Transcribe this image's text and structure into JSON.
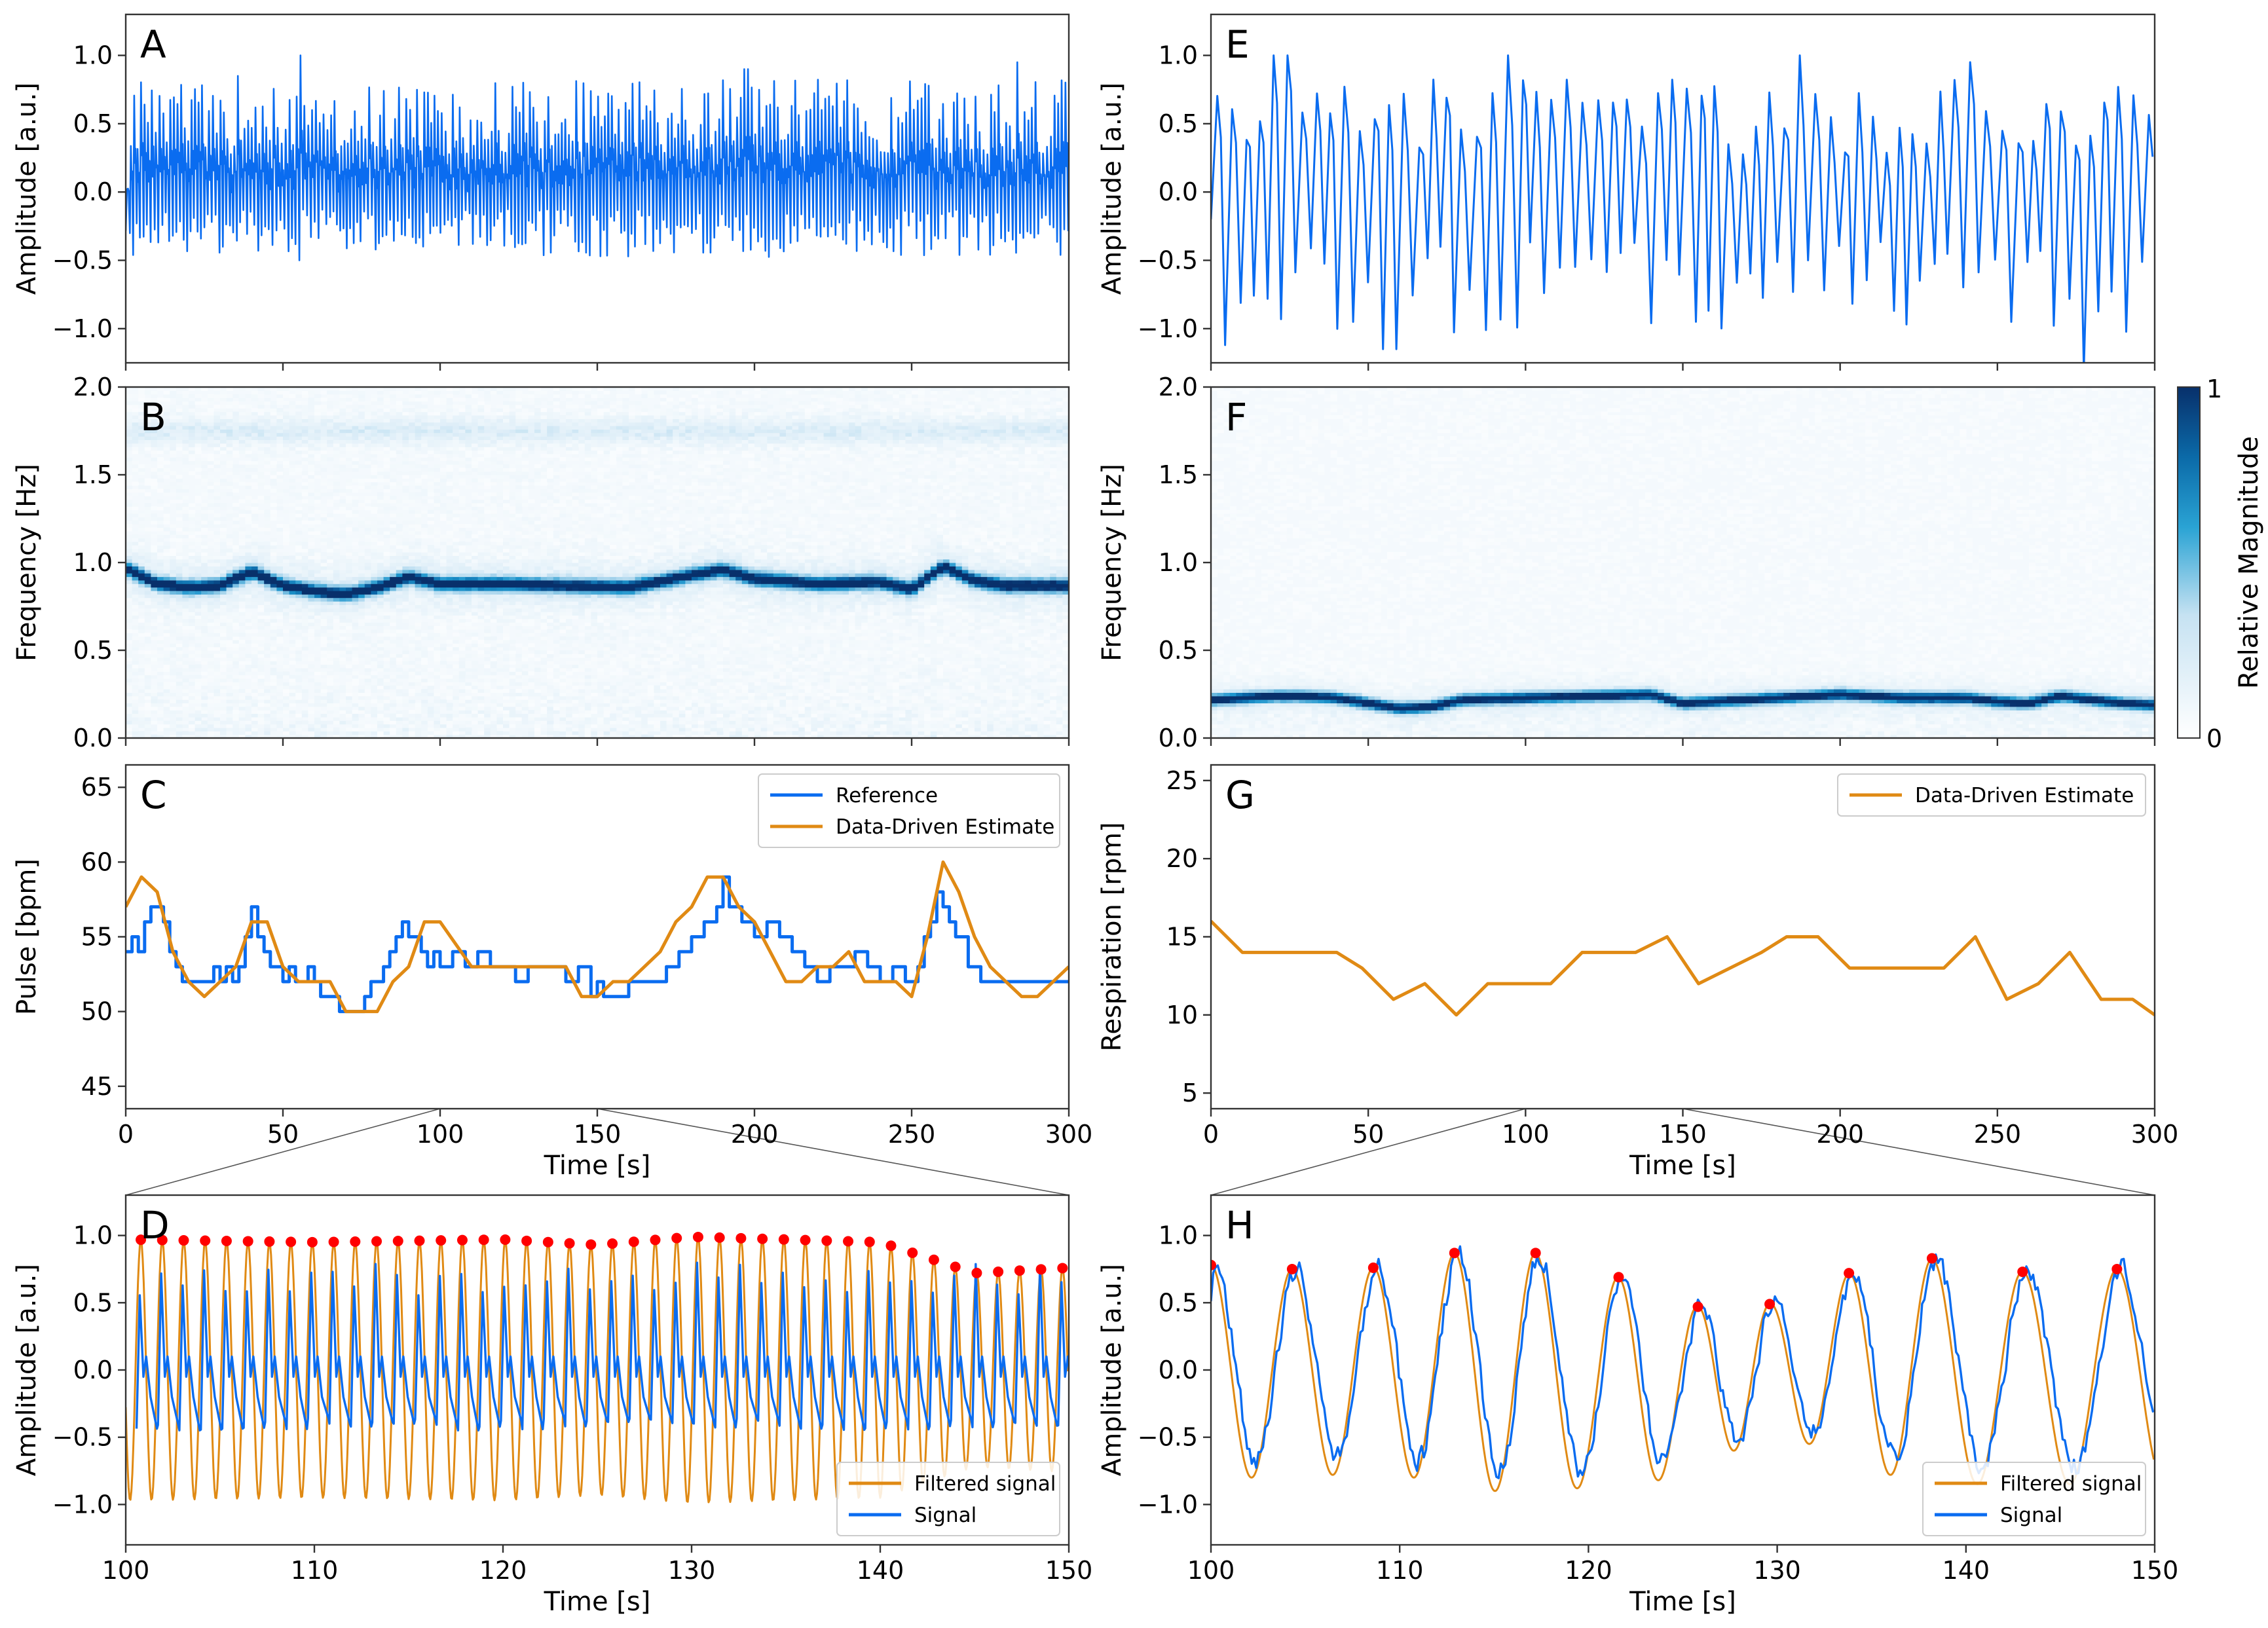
{
  "colors": {
    "signal_blue": "#0a6cf0",
    "estimate_orange": "#e08a14",
    "peak_red": "#ff0000",
    "heat_low": "#ffffff",
    "heat_high": "#08306b"
  },
  "chart_data": [
    {
      "id": "A",
      "type": "line",
      "panel_label": "A",
      "title": "",
      "xlabel": "",
      "ylabel": "Amplitude [a.u.]",
      "xlim": [
        0,
        300
      ],
      "ylim": [
        -1.25,
        1.3
      ],
      "yticks": [
        -1.0,
        -0.5,
        0.0,
        0.5,
        1.0
      ],
      "ytick_labels": [
        "−1.0",
        "−0.5",
        "0.0",
        "0.5",
        "1.0"
      ],
      "xticks": [
        0,
        50,
        100,
        150,
        200,
        250,
        300
      ],
      "xtick_labels_shown": false,
      "series": [
        {
          "name": "Signal",
          "color": "#0a6cf0",
          "kind": "oscillation",
          "approx_frequency_hz": 0.87,
          "approx_envelope": [
            -0.5,
            0.9
          ],
          "anchor_points": [
            [
              0,
              0.02
            ],
            [
              35,
              0.85
            ],
            [
              55,
              1.0
            ],
            [
              55.5,
              -0.5
            ],
            [
              197,
              0.9
            ],
            [
              283,
              0.95
            ],
            [
              300,
              0.8
            ]
          ]
        }
      ]
    },
    {
      "id": "B",
      "type": "heatmap",
      "panel_label": "B",
      "xlabel": "",
      "ylabel": "Frequency [Hz]",
      "xlim": [
        0,
        300
      ],
      "ylim": [
        0,
        2.0
      ],
      "yticks": [
        0.0,
        0.5,
        1.0,
        1.5,
        2.0
      ],
      "ytick_labels": [
        "0.0",
        "0.5",
        "1.0",
        "1.5",
        "2.0"
      ],
      "xticks": [
        0,
        50,
        100,
        150,
        200,
        250,
        300
      ],
      "xtick_labels_shown": false,
      "ridge": {
        "time": [
          0,
          10,
          20,
          30,
          40,
          50,
          60,
          70,
          80,
          90,
          100,
          120,
          140,
          160,
          180,
          190,
          200,
          220,
          240,
          250,
          260,
          270,
          280,
          300
        ],
        "freq": [
          0.97,
          0.88,
          0.86,
          0.87,
          0.95,
          0.87,
          0.84,
          0.82,
          0.86,
          0.92,
          0.88,
          0.88,
          0.87,
          0.86,
          0.93,
          0.96,
          0.91,
          0.88,
          0.89,
          0.85,
          0.98,
          0.9,
          0.87,
          0.87
        ]
      },
      "harmonic_ridge_hz": 1.75,
      "colorbar": {
        "label": "Relative Magnitude",
        "min": 0,
        "max": 1
      }
    },
    {
      "id": "C",
      "type": "line",
      "panel_label": "C",
      "xlabel": "Time [s]",
      "ylabel": "Pulse [bpm]",
      "xlim": [
        0,
        300
      ],
      "ylim": [
        43.5,
        66.5
      ],
      "yticks": [
        45,
        50,
        55,
        60,
        65
      ],
      "ytick_labels": [
        "45",
        "50",
        "55",
        "60",
        "65"
      ],
      "xticks": [
        0,
        50,
        100,
        150,
        200,
        250,
        300
      ],
      "xtick_labels": [
        "0",
        "50",
        "100",
        "150",
        "200",
        "250",
        "300"
      ],
      "legend": {
        "position": "top-right",
        "entries": [
          "Reference",
          "Data-Driven Estimate"
        ]
      },
      "series": [
        {
          "name": "Reference",
          "color": "#0a6cf0",
          "x": [
            0,
            2,
            4,
            6,
            8,
            10,
            12,
            14,
            16,
            18,
            20,
            22,
            24,
            26,
            28,
            30,
            32,
            34,
            36,
            38,
            40,
            42,
            44,
            46,
            48,
            50,
            52,
            54,
            56,
            58,
            60,
            62,
            64,
            66,
            68,
            70,
            72,
            74,
            76,
            78,
            80,
            82,
            84,
            86,
            88,
            90,
            92,
            94,
            96,
            98,
            100,
            104,
            108,
            112,
            116,
            120,
            124,
            128,
            132,
            136,
            140,
            144,
            148,
            150,
            152,
            156,
            160,
            164,
            168,
            172,
            176,
            180,
            184,
            188,
            190,
            192,
            196,
            200,
            204,
            208,
            212,
            216,
            220,
            224,
            228,
            232,
            236,
            240,
            244,
            248,
            250,
            252,
            254,
            256,
            258,
            260,
            262,
            264,
            268,
            272,
            276,
            280,
            284,
            288,
            292,
            296,
            300
          ],
          "y": [
            54,
            55,
            54,
            56,
            57,
            57,
            56,
            54,
            53,
            52,
            52,
            52,
            52,
            52,
            53,
            52,
            53,
            52,
            53,
            55,
            57,
            55,
            54,
            53,
            53,
            52,
            53,
            52,
            52,
            53,
            52,
            51,
            51,
            51,
            50,
            50,
            50,
            50,
            51,
            52,
            52,
            53,
            54,
            55,
            56,
            55,
            55,
            54,
            53,
            54,
            53,
            54,
            53,
            54,
            53,
            53,
            52,
            53,
            53,
            53,
            52,
            53,
            51,
            52,
            51,
            51,
            52,
            52,
            52,
            53,
            54,
            55,
            56,
            57,
            59,
            57,
            56,
            55,
            56,
            55,
            54,
            53,
            52,
            53,
            53,
            54,
            53,
            52,
            53,
            52,
            52,
            53,
            55,
            56,
            58,
            57,
            56,
            55,
            53,
            52,
            52,
            52,
            52,
            52,
            52,
            52,
            52
          ]
        },
        {
          "name": "Data-Driven Estimate",
          "color": "#e08a14",
          "x": [
            0,
            5,
            10,
            15,
            20,
            25,
            30,
            35,
            40,
            45,
            50,
            55,
            60,
            65,
            70,
            75,
            80,
            85,
            90,
            95,
            100,
            110,
            120,
            130,
            140,
            145,
            150,
            155,
            160,
            165,
            170,
            175,
            180,
            185,
            190,
            195,
            200,
            205,
            210,
            215,
            220,
            225,
            230,
            235,
            240,
            245,
            250,
            255,
            260,
            265,
            270,
            275,
            280,
            285,
            290,
            295,
            300
          ],
          "y": [
            57,
            59,
            58,
            54,
            52,
            51,
            52,
            53,
            56,
            56,
            53,
            52,
            52,
            52,
            50,
            50,
            50,
            52,
            53,
            56,
            56,
            53,
            53,
            53,
            53,
            51,
            51,
            52,
            52,
            53,
            54,
            56,
            57,
            59,
            59,
            57,
            56,
            54,
            52,
            52,
            53,
            53,
            54,
            52,
            52,
            52,
            51,
            55,
            60,
            58,
            55,
            53,
            52,
            51,
            51,
            52,
            53
          ]
        }
      ]
    },
    {
      "id": "D",
      "type": "line",
      "panel_label": "D",
      "xlabel": "Time [s]",
      "ylabel": "Amplitude [a.u.]",
      "xlim": [
        100,
        150
      ],
      "ylim": [
        -1.3,
        1.3
      ],
      "yticks": [
        -1.0,
        -0.5,
        0.0,
        0.5,
        1.0
      ],
      "ytick_labels": [
        "−1.0",
        "−0.5",
        "0.0",
        "0.5",
        "1.0"
      ],
      "xticks": [
        100,
        110,
        120,
        130,
        140,
        150
      ],
      "xtick_labels": [
        "100",
        "110",
        "120",
        "130",
        "140",
        "150"
      ],
      "legend": {
        "position": "bottom-right",
        "entries": [
          "Filtered signal",
          "Signal"
        ]
      },
      "zoom_from": {
        "panel": "C",
        "x_range": [
          100,
          150
        ]
      },
      "series": [
        {
          "name": "Filtered signal",
          "color": "#e08a14",
          "kind": "sinusoid",
          "frequency_hz": 0.88,
          "amplitude_envelope": {
            "x": [
              100,
              110,
              120,
              125,
              130,
              140,
              145,
              150
            ],
            "y": [
              0.97,
              0.95,
              0.97,
              0.93,
              0.99,
              0.95,
              0.72,
              0.76
            ]
          }
        },
        {
          "name": "Signal",
          "color": "#0a6cf0",
          "kind": "pulse_wave",
          "frequency_hz": 0.88,
          "approx_range": [
            -0.45,
            0.85
          ]
        },
        {
          "name": "Peaks",
          "color": "#ff0000",
          "kind": "markers_on_filtered_maxima"
        }
      ]
    },
    {
      "id": "E",
      "type": "line",
      "panel_label": "E",
      "xlabel": "",
      "ylabel": "Amplitude [a.u.]",
      "xlim": [
        0,
        300
      ],
      "ylim": [
        -1.25,
        1.3
      ],
      "yticks": [
        -1.0,
        -0.5,
        0.0,
        0.5,
        1.0
      ],
      "ytick_labels": [
        "−1.0",
        "−0.5",
        "0.0",
        "0.5",
        "1.0"
      ],
      "xticks": [
        0,
        50,
        100,
        150,
        200,
        250,
        300
      ],
      "xtick_labels_shown": false,
      "series": [
        {
          "name": "Signal",
          "color": "#0a6cf0",
          "kind": "oscillation",
          "approx_frequency_hz": 0.22,
          "approx_envelope": [
            -1.2,
            1.0
          ],
          "anchor_points": [
            [
              0,
              -0.2
            ],
            [
              5,
              -1.12
            ],
            [
              20,
              1.0
            ],
            [
              47,
              -0.95
            ],
            [
              57,
              -1.15
            ],
            [
              93,
              1.0
            ],
            [
              185,
              1.0
            ],
            [
              240,
              0.95
            ],
            [
              257,
              -0.95
            ],
            [
              278,
              -1.3
            ],
            [
              300,
              -0.15
            ]
          ]
        }
      ]
    },
    {
      "id": "F",
      "type": "heatmap",
      "panel_label": "F",
      "xlabel": "",
      "ylabel": "Frequency [Hz]",
      "xlim": [
        0,
        300
      ],
      "ylim": [
        0,
        2.0
      ],
      "yticks": [
        0.0,
        0.5,
        1.0,
        1.5,
        2.0
      ],
      "ytick_labels": [
        "0.0",
        "0.5",
        "1.0",
        "1.5",
        "2.0"
      ],
      "xticks": [
        0,
        50,
        100,
        150,
        200,
        250,
        300
      ],
      "xtick_labels_shown": false,
      "ridge": {
        "time": [
          0,
          10,
          20,
          30,
          40,
          50,
          60,
          70,
          80,
          100,
          120,
          140,
          150,
          160,
          180,
          200,
          220,
          240,
          250,
          260,
          270,
          280,
          290,
          300
        ],
        "freq": [
          0.22,
          0.23,
          0.24,
          0.24,
          0.23,
          0.2,
          0.17,
          0.18,
          0.22,
          0.23,
          0.24,
          0.25,
          0.2,
          0.21,
          0.23,
          0.25,
          0.23,
          0.23,
          0.21,
          0.2,
          0.24,
          0.22,
          0.2,
          0.19
        ]
      },
      "colorbar": {
        "label": "Relative Magnitude",
        "min": 0,
        "max": 1,
        "tick_labels": [
          "0",
          "1"
        ]
      }
    },
    {
      "id": "G",
      "type": "line",
      "panel_label": "G",
      "xlabel": "Time [s]",
      "ylabel": "Respiration [rpm]",
      "xlim": [
        0,
        300
      ],
      "ylim": [
        4,
        26
      ],
      "yticks": [
        5,
        10,
        15,
        20,
        25
      ],
      "ytick_labels": [
        "5",
        "10",
        "15",
        "20",
        "25"
      ],
      "xticks": [
        0,
        50,
        100,
        150,
        200,
        250,
        300
      ],
      "xtick_labels": [
        "0",
        "50",
        "100",
        "150",
        "200",
        "250",
        "300"
      ],
      "legend": {
        "position": "top-right",
        "entries": [
          "Data-Driven Estimate"
        ]
      },
      "series": [
        {
          "name": "Data-Driven Estimate",
          "color": "#e08a14",
          "x": [
            0,
            10,
            20,
            30,
            40,
            48,
            58,
            68,
            78,
            88,
            98,
            108,
            118,
            128,
            135,
            145,
            155,
            165,
            175,
            183,
            193,
            203,
            213,
            223,
            233,
            243,
            253,
            263,
            273,
            283,
            293,
            300
          ],
          "y": [
            16,
            14,
            14,
            14,
            14,
            13,
            11,
            12,
            10,
            12,
            12,
            12,
            14,
            14,
            14,
            15,
            12,
            13,
            14,
            15,
            15,
            13,
            13,
            13,
            13,
            15,
            11,
            12,
            14,
            11,
            11,
            10
          ]
        }
      ]
    },
    {
      "id": "H",
      "type": "line",
      "panel_label": "H",
      "xlabel": "Time [s]",
      "ylabel": "Amplitude [a.u.]",
      "xlim": [
        100,
        150
      ],
      "ylim": [
        -1.3,
        1.3
      ],
      "yticks": [
        -1.0,
        -0.5,
        0.0,
        0.5,
        1.0
      ],
      "ytick_labels": [
        "−1.0",
        "−0.5",
        "0.0",
        "0.5",
        "1.0"
      ],
      "xticks": [
        100,
        110,
        120,
        130,
        140,
        150
      ],
      "xtick_labels": [
        "100",
        "110",
        "120",
        "130",
        "140",
        "150"
      ],
      "legend": {
        "position": "bottom-right",
        "entries": [
          "Filtered signal",
          "Signal"
        ]
      },
      "zoom_from": {
        "panel": "G",
        "x_range": [
          100,
          150
        ]
      },
      "series": [
        {
          "name": "Filtered signal",
          "color": "#e08a14",
          "kind": "wave_through_peaks",
          "peak_times": [
            100,
            104.3,
            108.6,
            112.9,
            117.2,
            121.6,
            125.8,
            129.6,
            133.8,
            138.2,
            143.0,
            148.0
          ],
          "peak_values": [
            0.78,
            0.75,
            0.76,
            0.87,
            0.87,
            0.69,
            0.47,
            0.49,
            0.72,
            0.83,
            0.73,
            0.75
          ],
          "trough_values": [
            -0.8,
            -0.78,
            -0.8,
            -0.9,
            -0.88,
            -0.82,
            -0.6,
            -0.55,
            -0.78,
            -0.85,
            -0.85,
            -0.75
          ]
        },
        {
          "name": "Signal",
          "color": "#0a6cf0",
          "kind": "noisy_wave",
          "approx_range": [
            -0.85,
            0.9
          ]
        },
        {
          "name": "Peaks",
          "color": "#ff0000",
          "kind": "markers_on_filtered_maxima"
        }
      ]
    }
  ]
}
